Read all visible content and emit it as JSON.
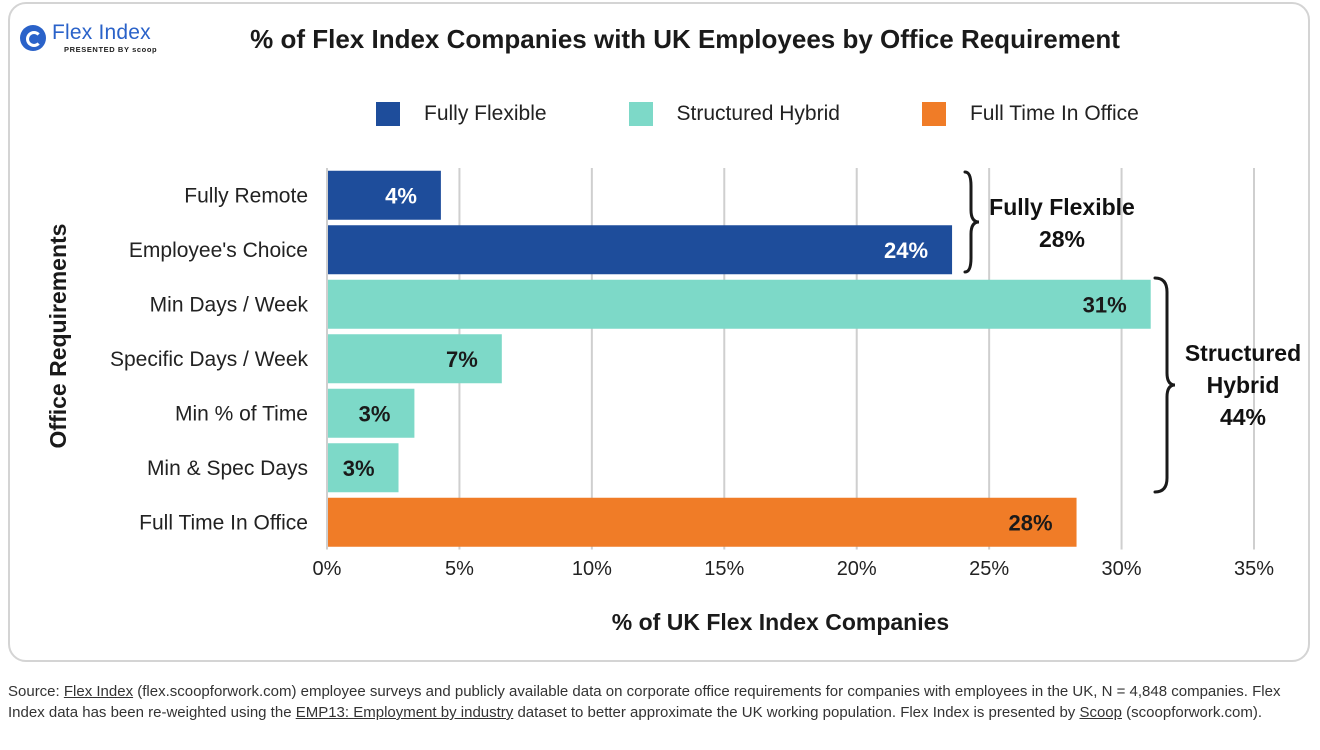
{
  "logo": {
    "name": "Flex Index",
    "sub": "PRESENTED BY scoop"
  },
  "chart_data": {
    "type": "bar",
    "orientation": "horizontal",
    "title": "% of Flex Index Companies with UK Employees by Office Requirement",
    "xlabel": "% of UK Flex Index Companies",
    "ylabel": "Office Requirements",
    "xlim": [
      0,
      35
    ],
    "xticks": [
      0,
      5,
      10,
      15,
      20,
      25,
      30,
      35
    ],
    "xtick_labels": [
      "0%",
      "5%",
      "10%",
      "15%",
      "20%",
      "25%",
      "30%",
      "35%"
    ],
    "grid": "vertical",
    "legend": {
      "position": "top",
      "entries": [
        {
          "name": "Fully Flexible",
          "color": "#1e4d9b"
        },
        {
          "name": "Structured Hybrid",
          "color": "#7dd9c8"
        },
        {
          "name": "Full Time In Office",
          "color": "#f07c27"
        }
      ]
    },
    "categories": [
      "Fully Remote",
      "Employee's Choice",
      "Min Days / Week",
      "Specific Days / Week",
      "Min % of Time",
      "Min & Spec Days",
      "Full Time In Office"
    ],
    "values": [
      4.3,
      23.6,
      31.1,
      6.6,
      3.3,
      2.7,
      28.3
    ],
    "value_labels": [
      "4%",
      "24%",
      "31%",
      "7%",
      "3%",
      "3%",
      "28%"
    ],
    "groups": [
      "Fully Flexible",
      "Fully Flexible",
      "Structured Hybrid",
      "Structured Hybrid",
      "Structured Hybrid",
      "Structured Hybrid",
      "Full Time In Office"
    ],
    "annotations": [
      {
        "lines": [
          "Fully Flexible",
          "28%"
        ],
        "spans": [
          0,
          1
        ]
      },
      {
        "lines": [
          "Structured",
          "Hybrid",
          "44%"
        ],
        "spans": [
          2,
          5
        ]
      }
    ]
  },
  "source": {
    "prefix": "Source: ",
    "link1": "Flex Index",
    "part1": " (flex.scoopforwork.com) employee surveys and publicly available data on corporate office requirements for companies with employees in the UK, N = 4,848 companies. Flex Index data has been re-weighted using the ",
    "link2": "EMP13: Employment by industry",
    "part2": " dataset to better approximate the UK working population. Flex Index is presented by ",
    "link3": "Scoop",
    "part3": " (scoopforwork.com)."
  }
}
